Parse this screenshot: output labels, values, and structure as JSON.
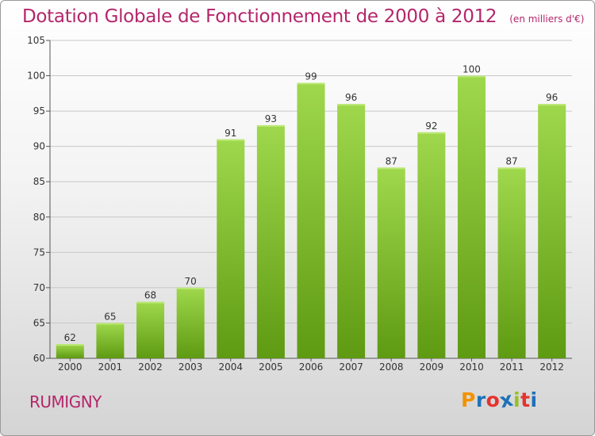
{
  "header": {
    "title": "Dotation Globale de Fonctionnement de 2000 à 2012",
    "unit": "(en milliers d'€)"
  },
  "footer": {
    "commune": "RUMIGNY",
    "logo": {
      "letters": [
        "P",
        "r",
        "o",
        "x",
        "i",
        "t",
        "i"
      ],
      "colors": [
        "#f39200",
        "#1d71b8",
        "#e3342f",
        "#1d71b8",
        "#95c11f",
        "#e3342f",
        "#1d71b8"
      ]
    }
  },
  "colors": {
    "title": "#b4266a",
    "bar_light": "#9fd84c",
    "bar_dark": "#5e9a12",
    "grid": "#c8c8c8"
  },
  "chart_data": {
    "type": "bar",
    "categories": [
      "2000",
      "2001",
      "2002",
      "2003",
      "2004",
      "2005",
      "2006",
      "2007",
      "2008",
      "2009",
      "2010",
      "2011",
      "2012"
    ],
    "values": [
      62,
      65,
      68,
      70,
      91,
      93,
      99,
      96,
      87,
      92,
      100,
      87,
      96
    ],
    "ylim": [
      60,
      105
    ],
    "yticks": [
      60,
      65,
      70,
      75,
      80,
      85,
      90,
      95,
      100,
      105
    ],
    "grid": true,
    "title": "Dotation Globale de Fonctionnement de 2000 à 2012",
    "xlabel": "",
    "ylabel": ""
  }
}
